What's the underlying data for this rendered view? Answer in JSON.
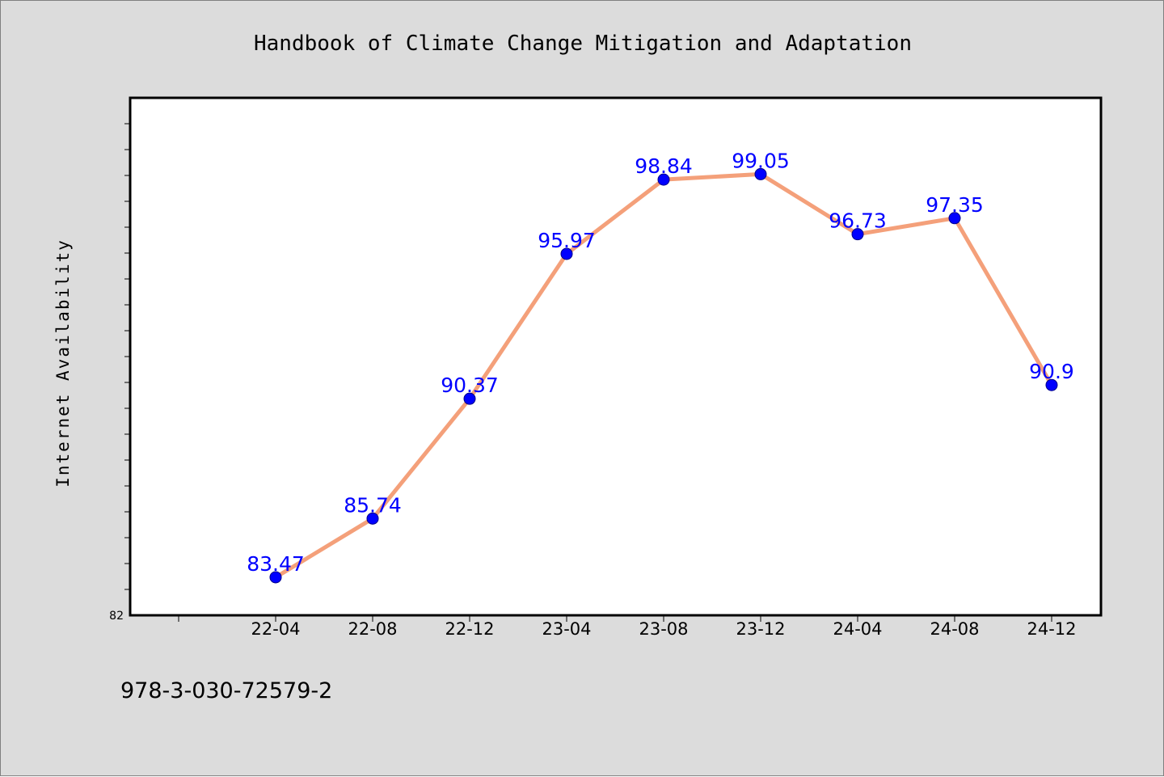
{
  "chart_data": {
    "type": "line",
    "title": "Handbook of Climate Change Mitigation and Adaptation",
    "xlabel": "",
    "ylabel": "Internet Availability",
    "categories": [
      "22-04",
      "22-08",
      "22-12",
      "23-04",
      "23-08",
      "23-12",
      "24-04",
      "24-08",
      "24-12"
    ],
    "series": [
      {
        "values": [
          83.47,
          85.74,
          90.37,
          95.97,
          98.84,
          99.05,
          96.73,
          97.35,
          90.9
        ],
        "labels": [
          "83.47",
          "85.74",
          "90.37",
          "95.97",
          "98.84",
          "99.05",
          "96.73",
          "97.35",
          "90.9"
        ],
        "line_color": "#f4a07a",
        "marker_color": "#0000ff"
      }
    ],
    "ylim": [
      82,
      102
    ],
    "ytick_labels": [
      "82"
    ],
    "grid": false,
    "legend": "none"
  },
  "footer": {
    "isbn": "978-3-030-72579-2"
  },
  "colors": {
    "background": "#dcdcdc",
    "plot_area": "#ffffff",
    "data_label": "#0000ff"
  }
}
